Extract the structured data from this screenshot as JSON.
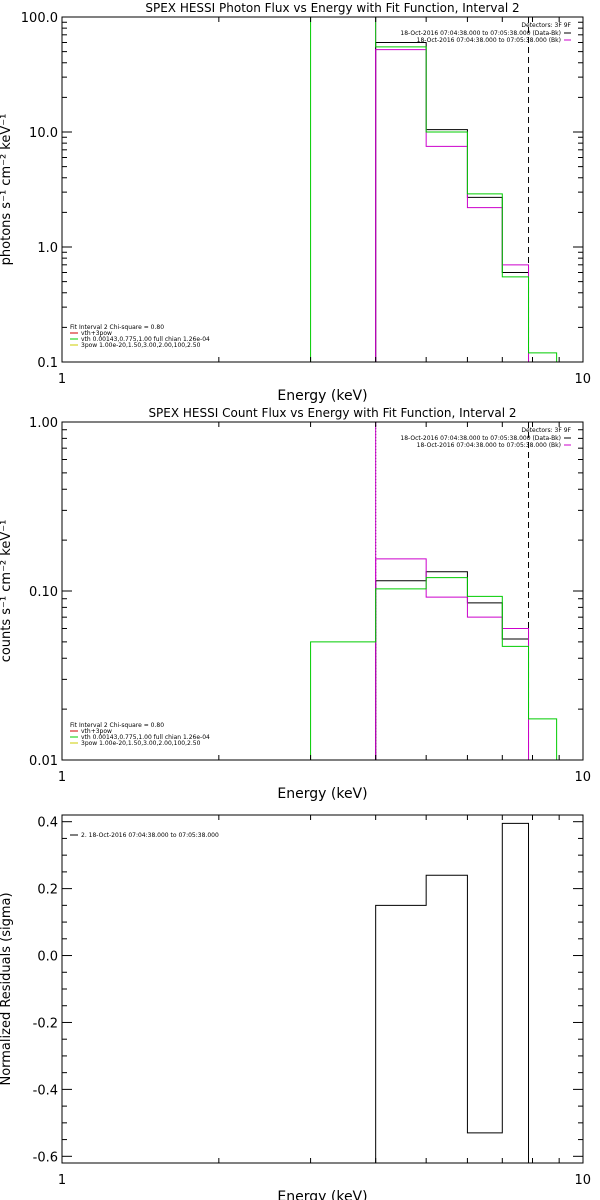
{
  "chart_data": [
    {
      "type": "step",
      "title": "SPEX HESSI Photon Flux vs Energy with Fit Function, Interval 2",
      "xlabel": "Energy (keV)",
      "ylabel": "photons s⁻¹ cm⁻² keV⁻¹",
      "xscale": "log",
      "yscale": "log",
      "xlim": [
        1,
        10
      ],
      "ylim": [
        0.1,
        100
      ],
      "xtick_labels": [
        "1",
        "10"
      ],
      "ytick_labels": [
        "0.1",
        "1.0",
        "10.0",
        "100.0"
      ],
      "legend_right": {
        "heading": "Detectors: 3F 9F",
        "entries": [
          {
            "text": "18-Oct-2016 07:04:38.000 to 07:05:38.000 (Data-Bk)",
            "color": "#000000"
          },
          {
            "text": "18-Oct-2016 07:04:38.000 to 07:05:38.000 (Bk)",
            "color": "#cc00cc"
          }
        ]
      },
      "legend_left": {
        "heading": "Fit Interval 2   Chi-square = 0.80",
        "entries": [
          {
            "text": "vth+3pow",
            "color": "#cc0000"
          },
          {
            "text": "vth 0.00143,0.775,1.00  full chian 1.26e-04",
            "color": "#00cc00"
          },
          {
            "text": "3pow 1.00e-20,1.50,3.00,2.00,100,2.50",
            "color": "#cccc00"
          }
        ]
      },
      "vlines": [
        {
          "x": 4.0,
          "style": "solid",
          "color": "#cc00cc"
        },
        {
          "x": 7.86,
          "style": "dashed",
          "color": "#000000"
        }
      ],
      "series": [
        {
          "name": "Data-Bk",
          "color": "#000000",
          "edges": [
            4.0,
            5.0,
            6.0,
            7.0,
            7.86
          ],
          "values": [
            60.0,
            10.5,
            2.7,
            0.6
          ]
        },
        {
          "name": "Bk",
          "color": "#cc00cc",
          "edges": [
            4.0,
            5.0,
            6.0,
            7.0,
            7.86
          ],
          "values": [
            52.0,
            7.5,
            2.2,
            0.7
          ]
        },
        {
          "name": "vth+3pow",
          "color": "#00cc00",
          "edges": [
            3.0,
            4.0,
            5.0,
            6.0,
            7.0,
            7.86,
            8.9
          ],
          "values": [
            150.0,
            55.0,
            10.0,
            2.9,
            0.55,
            0.12
          ]
        }
      ]
    },
    {
      "type": "step",
      "title": "SPEX HESSI Count Flux vs Energy with Fit Function, Interval 2",
      "xlabel": "Energy (keV)",
      "ylabel": "counts s⁻¹ cm⁻² keV⁻¹",
      "xscale": "log",
      "yscale": "log",
      "xlim": [
        1,
        10
      ],
      "ylim": [
        0.01,
        1.0
      ],
      "xtick_labels": [
        "1",
        "10"
      ],
      "ytick_labels": [
        "0.01",
        "0.10",
        "1.00"
      ],
      "legend_right": {
        "heading": "Detectors: 3F 9F",
        "entries": [
          {
            "text": "18-Oct-2016 07:04:38.000 to 07:05:38.000 (Data-Bk)",
            "color": "#000000"
          },
          {
            "text": "18-Oct-2016 07:04:38.000 to 07:05:38.000 (Bk)",
            "color": "#cc00cc"
          }
        ]
      },
      "legend_left": {
        "heading": "Fit Interval 2   Chi-square = 0.80",
        "entries": [
          {
            "text": "vth+3pow",
            "color": "#cc0000"
          },
          {
            "text": "vth 0.00143,0.775,1.00  full chian 1.26e-04",
            "color": "#00cc00"
          },
          {
            "text": "3pow 1.00e-20,1.50,3.00,2.00,100,2.50",
            "color": "#cccc00"
          }
        ]
      },
      "vlines": [
        {
          "x": 4.0,
          "style": "dotted",
          "color": "#000000"
        },
        {
          "x": 4.0,
          "style": "solid",
          "color": "#cc00cc"
        },
        {
          "x": 7.86,
          "style": "dashed",
          "color": "#000000"
        }
      ],
      "series": [
        {
          "name": "Data-Bk",
          "color": "#000000",
          "edges": [
            4.0,
            5.0,
            6.0,
            7.0,
            7.86
          ],
          "values": [
            0.115,
            0.13,
            0.085,
            0.052
          ]
        },
        {
          "name": "Bk",
          "color": "#cc00cc",
          "edges": [
            4.0,
            5.0,
            6.0,
            7.0,
            7.86
          ],
          "values": [
            0.155,
            0.092,
            0.07,
            0.06
          ]
        },
        {
          "name": "vth+3pow",
          "color": "#00cc00",
          "edges": [
            3.0,
            4.0,
            5.0,
            6.0,
            7.0,
            7.86,
            8.9
          ],
          "values": [
            0.05,
            0.103,
            0.12,
            0.093,
            0.047,
            0.0175
          ]
        }
      ]
    },
    {
      "type": "step",
      "title": "",
      "xlabel": "Energy (keV)",
      "ylabel": "Normalized Residuals (sigma)",
      "xscale": "log",
      "yscale": "linear",
      "xlim": [
        1,
        10
      ],
      "ylim": [
        -0.62,
        0.42
      ],
      "xtick_labels": [
        "1",
        "10"
      ],
      "yticks": [
        -0.6,
        -0.4,
        -0.2,
        0.0,
        0.2,
        0.4
      ],
      "ytick_labels": [
        "-0.6",
        "-0.4",
        "-0.2",
        "0.0",
        "0.2",
        "0.4"
      ],
      "legend_left": {
        "heading": "",
        "entries": [
          {
            "text": "2. 18-Oct-2016 07:04:38.000 to 07:05:38.000",
            "color": "#000000"
          }
        ]
      },
      "series": [
        {
          "name": "2. 18-Oct-2016 07:04:38.000 to 07:05:38.000",
          "color": "#000000",
          "edges": [
            4.0,
            5.0,
            6.0,
            7.0,
            7.86
          ],
          "values": [
            0.15,
            0.24,
            -0.53,
            0.395
          ]
        }
      ]
    }
  ]
}
